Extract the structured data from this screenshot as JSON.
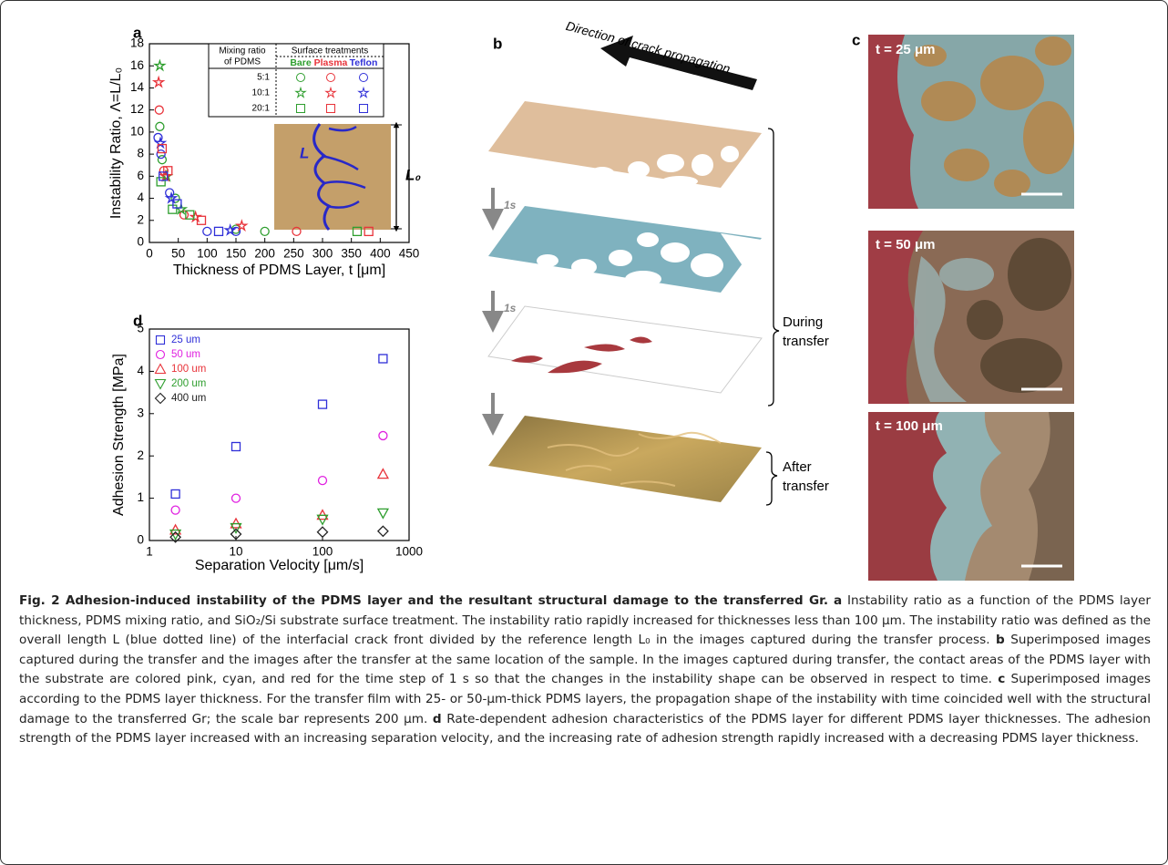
{
  "chart_data": [
    {
      "type": "scatter",
      "panel": "a",
      "xlabel": "Thickness of PDMS Layer, t [μm]",
      "ylabel": "Instability Ratio, Λ=L/L₀",
      "xlim": [
        0,
        450
      ],
      "xticks": [
        0,
        50,
        100,
        150,
        200,
        250,
        300,
        350,
        400,
        450
      ],
      "ylim": [
        0,
        18
      ],
      "yticks": [
        0,
        2,
        4,
        6,
        8,
        10,
        12,
        14,
        16,
        18
      ],
      "legend_table": {
        "row_header": [
          "Mixing ratio",
          "of PDMS"
        ],
        "col_header": "Surface treatments",
        "columns": [
          "Bare",
          "Plasma",
          "Teflon"
        ],
        "rows": [
          "5:1",
          "10:1",
          "20:1"
        ]
      },
      "inset_labels": [
        "L",
        "L₀"
      ],
      "series": [
        {
          "color": "#2e9e2e",
          "marker": "circle",
          "x": [
            18,
            22,
            45,
            150,
            200
          ],
          "y": [
            10.5,
            7.5,
            4,
            1.2,
            1
          ]
        },
        {
          "color": "#e8333a",
          "marker": "circle",
          "x": [
            17,
            25,
            60,
            255
          ],
          "y": [
            12,
            6.5,
            2.5,
            1
          ]
        },
        {
          "color": "#2f2fd8",
          "marker": "circle",
          "x": [
            15,
            20,
            35,
            100,
            150
          ],
          "y": [
            9.5,
            8,
            4.5,
            1,
            1
          ]
        },
        {
          "color": "#2e9e2e",
          "marker": "star",
          "x": [
            18,
            30,
            55
          ],
          "y": [
            16,
            6,
            3
          ]
        },
        {
          "color": "#e8333a",
          "marker": "star",
          "x": [
            16,
            28,
            80,
            160
          ],
          "y": [
            14.5,
            6,
            2.3,
            1.5
          ]
        },
        {
          "color": "#2f2fd8",
          "marker": "star",
          "x": [
            19,
            38,
            140
          ],
          "y": [
            9,
            4,
            1.1
          ]
        },
        {
          "color": "#2e9e2e",
          "marker": "square",
          "x": [
            20,
            40,
            70,
            360
          ],
          "y": [
            5.5,
            3,
            2.5,
            1
          ]
        },
        {
          "color": "#e8333a",
          "marker": "square",
          "x": [
            22,
            32,
            90,
            380
          ],
          "y": [
            8.5,
            6.5,
            2,
            1
          ]
        },
        {
          "color": "#2f2fd8",
          "marker": "square",
          "x": [
            24,
            48,
            120
          ],
          "y": [
            6,
            3.5,
            1
          ]
        }
      ]
    },
    {
      "type": "scatter",
      "panel": "d",
      "log_x": true,
      "xlabel": "Separation Velocity [μm/s]",
      "ylabel": "Adhesion Strength [MPa]",
      "xlim": [
        1,
        1000
      ],
      "xticks": [
        1,
        10,
        100,
        1000
      ],
      "ylim": [
        0,
        5
      ],
      "yticks": [
        0,
        1,
        2,
        3,
        4,
        5
      ],
      "x": [
        2,
        10,
        100,
        500
      ],
      "series": [
        {
          "name": "25 um",
          "color": "#2f2fd8",
          "marker": "square",
          "values": [
            1.1,
            2.22,
            3.22,
            4.3
          ]
        },
        {
          "name": "50 um",
          "color": "#e020e0",
          "marker": "circle",
          "values": [
            0.72,
            1.0,
            1.42,
            2.48
          ]
        },
        {
          "name": "100 um",
          "color": "#e8333a",
          "marker": "triangle-up",
          "values": [
            0.25,
            0.4,
            0.6,
            1.57
          ]
        },
        {
          "name": "200 um",
          "color": "#2e9e2e",
          "marker": "triangle-down",
          "values": [
            0.15,
            0.3,
            0.5,
            0.65
          ]
        },
        {
          "name": "400 um",
          "color": "#222222",
          "marker": "diamond",
          "values": [
            0.08,
            0.15,
            0.2,
            0.22
          ]
        }
      ]
    }
  ],
  "panel_b": {
    "label": "b",
    "direction": "Direction of crack propagation",
    "steps": [
      "1s",
      "1s"
    ],
    "during": [
      "During",
      "transfer"
    ],
    "after": [
      "After",
      "transfer"
    ]
  },
  "panel_c": {
    "label": "c",
    "images": [
      "t = 25 μm",
      "t = 50 μm",
      "t = 100 μm"
    ]
  },
  "caption": {
    "title": "Fig. 2 Adhesion-induced instability of the PDMS layer and the resultant structural damage to the transferred Gr.",
    "parts": [
      {
        "label": "a",
        "text": "Instability ratio as a function of the PDMS layer thickness, PDMS mixing ratio, and SiO₂/Si substrate surface treatment. The instability ratio rapidly increased for thicknesses less than 100 μm. The instability ratio was defined as the overall length L (blue dotted line) of the interfacial crack front divided by the reference length L₀ in the images captured during the transfer process."
      },
      {
        "label": "b",
        "text": "Superimposed images captured during the transfer and the images after the transfer at the same location of the sample. In the images captured during transfer, the contact areas of the PDMS layer with the substrate are colored pink, cyan, and red for the time step of 1 s so that the changes in the instability shape can be observed in respect to time."
      },
      {
        "label": "c",
        "text": "Superimposed images according to the PDMS layer thickness. For the transfer film with 25- or 50-μm-thick PDMS layers, the propagation shape of the instability with time coincided well with the structural damage to the transferred Gr; the scale bar represents 200 μm."
      },
      {
        "label": "d",
        "text": "Rate-dependent adhesion characteristics of the PDMS layer for different PDMS layer thicknesses. The adhesion strength of the PDMS layer increased with an increasing separation velocity, and the increasing rate of adhesion strength rapidly increased with a decreasing PDMS layer thickness."
      }
    ]
  }
}
